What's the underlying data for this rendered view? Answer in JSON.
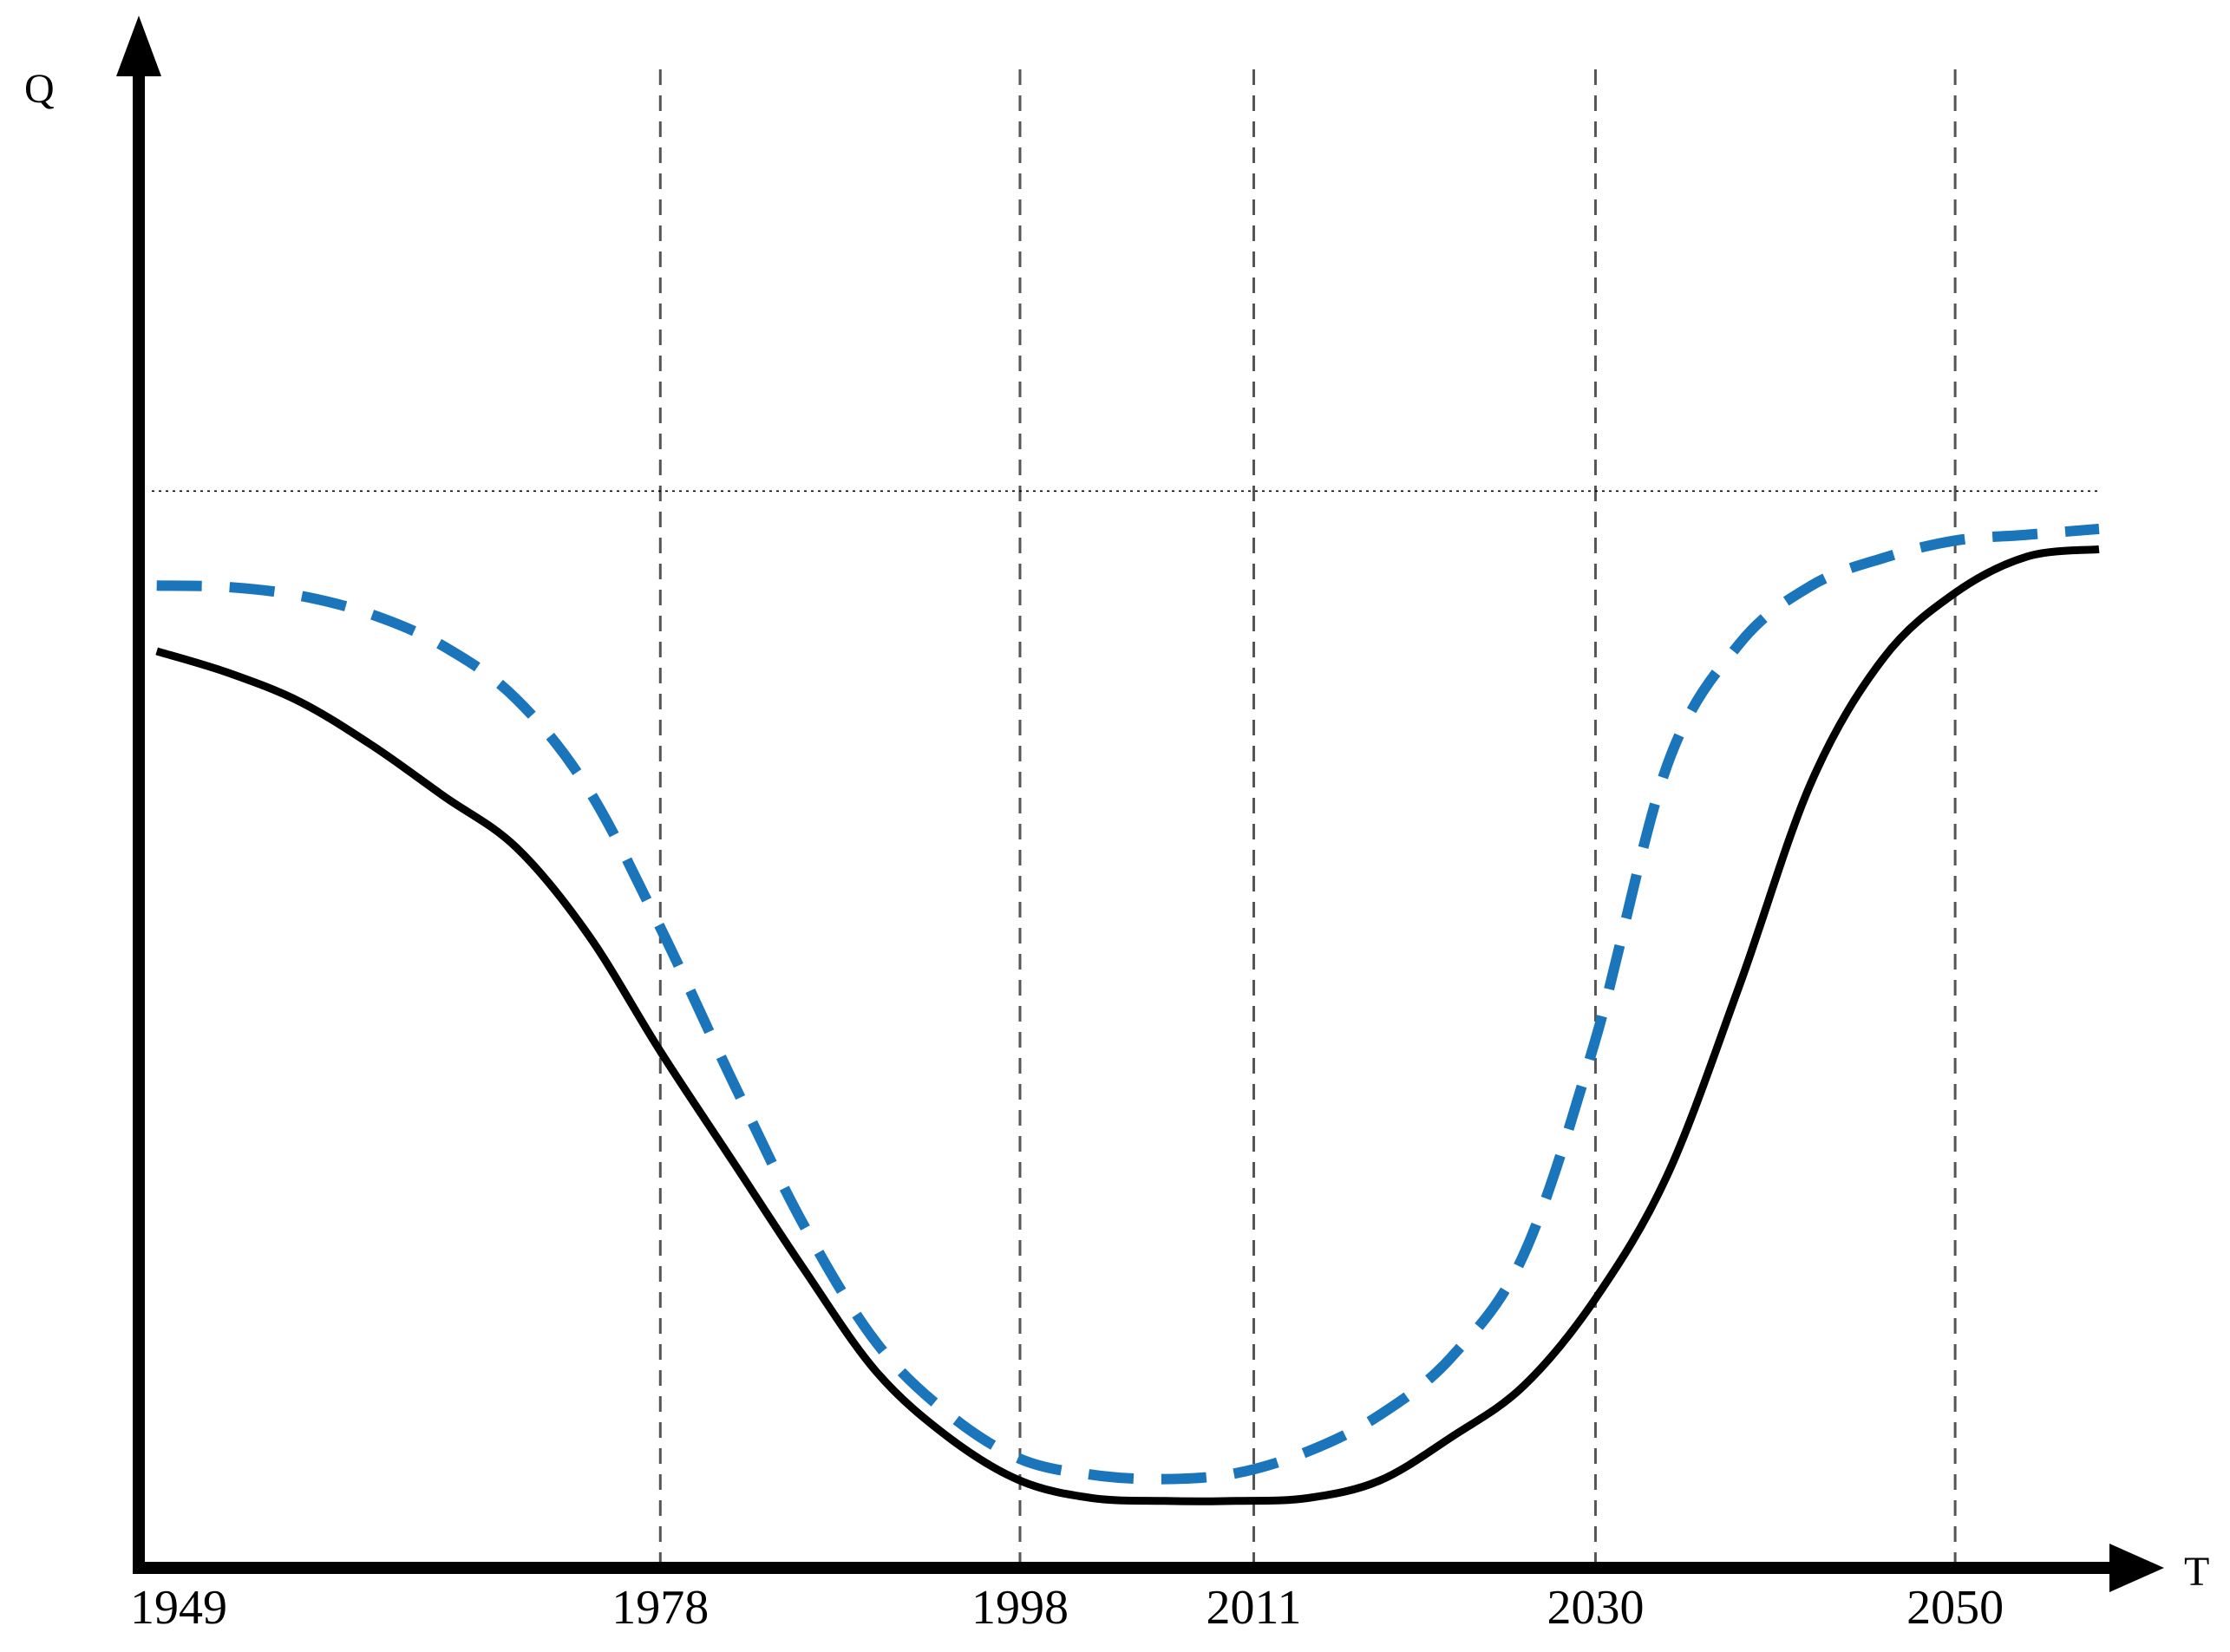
{
  "chart_data": {
    "type": "line",
    "title": "",
    "xlabel": "T",
    "ylabel": "Q",
    "x_ticks": [
      1949,
      1978,
      1998,
      2011,
      2030,
      2050
    ],
    "xlim": [
      1949,
      2058
    ],
    "ylim": [
      0,
      100
    ],
    "grid": "vertical dashed lines at tick years",
    "reference_line": {
      "style": "dotted",
      "y": 74
    },
    "series": [
      {
        "style": "solid",
        "color": "#000000",
        "x": [
          1950,
          1954,
          1958,
          1962,
          1966,
          1970,
          1974,
          1978,
          1982,
          1986,
          1990,
          1994,
          1998,
          2002,
          2006,
          2010,
          2014,
          2018,
          2022,
          2026,
          2030,
          2034,
          2038,
          2042,
          2046,
          2050,
          2054,
          2058
        ],
        "y": [
          63,
          61.5,
          59.5,
          56.5,
          53,
          49.5,
          43.5,
          35.5,
          28,
          20.5,
          13.5,
          9,
          6,
          4.8,
          4.6,
          4.6,
          4.8,
          6,
          9,
          12.5,
          18.5,
          27,
          40,
          54,
          62.5,
          67,
          69.5,
          70
        ]
      },
      {
        "style": "dashed",
        "color": "#1b75bb",
        "x": [
          1950,
          1954,
          1958,
          1962,
          1966,
          1970,
          1974,
          1978,
          1982,
          1986,
          1990,
          1994,
          1998,
          2002,
          2006,
          2010,
          2014,
          2018,
          2022,
          2026,
          2030,
          2034,
          2038,
          2042,
          2046,
          2050,
          2054,
          2058
        ],
        "y": [
          67.5,
          67.4,
          66.8,
          65.5,
          63.3,
          59.7,
          53.5,
          44,
          33.5,
          23.5,
          15.5,
          10.6,
          7.5,
          6.4,
          6.1,
          6.5,
          8,
          10.5,
          14.5,
          21.5,
          36.3,
          55.2,
          63.5,
          67.5,
          69.4,
          70.6,
          71,
          71.4
        ]
      }
    ]
  }
}
